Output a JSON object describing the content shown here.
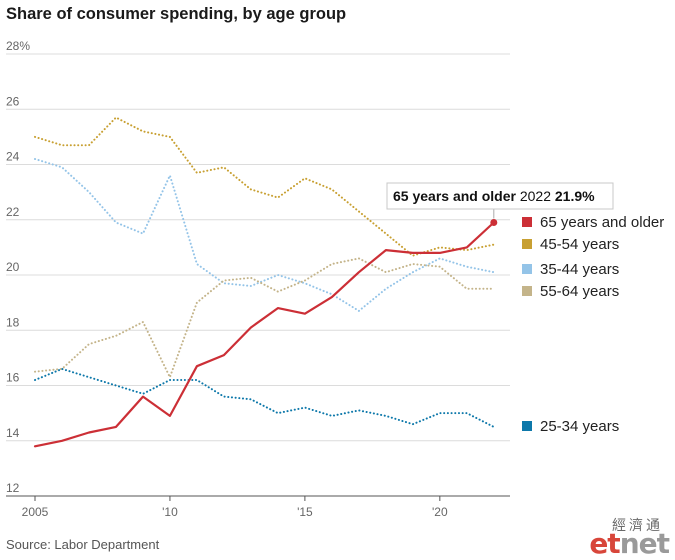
{
  "chart_data": {
    "type": "line",
    "title": "Share of consumer spending, by age group",
    "source": "Source: Labor Department",
    "x": [
      2005,
      2006,
      2007,
      2008,
      2009,
      2010,
      2011,
      2012,
      2013,
      2014,
      2015,
      2016,
      2017,
      2018,
      2019,
      2020,
      2021,
      2022
    ],
    "xlim": [
      2005,
      2022.6
    ],
    "ylim": [
      12,
      28
    ],
    "xticks": [
      2005,
      2010,
      2015,
      2020
    ],
    "xtick_labels": [
      "2005",
      "'10",
      "'15",
      "'20"
    ],
    "yticks": [
      12,
      14,
      16,
      18,
      20,
      22,
      24,
      26,
      28
    ],
    "ytick_labels": [
      "12",
      "14",
      "16",
      "18",
      "20",
      "22",
      "24",
      "26",
      "28%"
    ],
    "grid": "horizontal",
    "series": [
      {
        "name": "65 years and older",
        "color": "#cc2f36",
        "style": "solid",
        "values": [
          13.8,
          14.0,
          14.3,
          14.5,
          15.6,
          14.9,
          16.7,
          17.1,
          18.1,
          18.8,
          18.6,
          19.2,
          20.1,
          20.9,
          20.8,
          20.8,
          21.0,
          21.9
        ]
      },
      {
        "name": "45-54 years",
        "color": "#c8a032",
        "style": "dotted",
        "values": [
          25.0,
          24.7,
          24.7,
          25.7,
          25.2,
          25.0,
          23.7,
          23.9,
          23.1,
          22.8,
          23.5,
          23.1,
          22.3,
          21.5,
          20.7,
          21.0,
          20.9,
          21.1
        ]
      },
      {
        "name": "35-44 years",
        "color": "#94c4e8",
        "style": "dotted",
        "values": [
          24.2,
          23.9,
          23.0,
          21.9,
          21.5,
          23.6,
          20.4,
          19.7,
          19.6,
          20.0,
          19.7,
          19.3,
          18.7,
          19.5,
          20.1,
          20.6,
          20.3,
          20.1
        ]
      },
      {
        "name": "55-64 years",
        "color": "#c4b48a",
        "style": "dotted",
        "values": [
          16.5,
          16.6,
          17.5,
          17.8,
          18.3,
          16.3,
          19.0,
          19.8,
          19.9,
          19.4,
          19.8,
          20.4,
          20.6,
          20.1,
          20.4,
          20.3,
          19.5,
          19.5
        ]
      },
      {
        "name": "25-34 years",
        "color": "#0d78aa",
        "style": "dotted",
        "values": [
          16.2,
          16.6,
          16.3,
          16.0,
          15.7,
          16.2,
          16.2,
          15.6,
          15.5,
          15.0,
          15.2,
          14.9,
          15.1,
          14.9,
          14.6,
          15.0,
          15.0,
          14.5
        ]
      }
    ],
    "callout": {
      "series_name": "65 years and older",
      "year": "2022",
      "value": "21.9%"
    }
  },
  "logo": {
    "chinese": "經濟通",
    "mark_left": "et",
    "mark_right": "net"
  }
}
